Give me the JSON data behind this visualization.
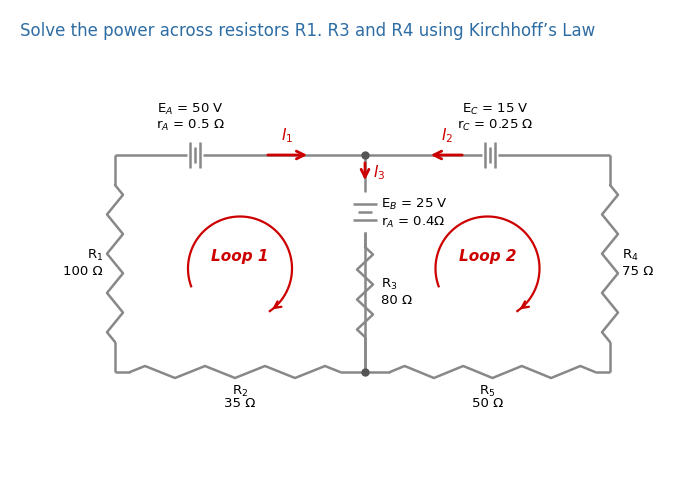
{
  "title": "Solve the power across resistors R1. R3 and R4 using Kirchhoff’s Law",
  "title_fontsize": 12,
  "title_color": "#2e6da4",
  "bg_color": "#ffffff",
  "circuit_color": "#888888",
  "red_color": "#cc0000",
  "circuit_lw": 1.8,
  "labels": {
    "EA": "E$_A$ = 50 V",
    "rA_top": "r$_A$ = 0.5 Ω",
    "EC": "E$_C$ = 15 V",
    "rC": "r$_C$ = 0.25 Ω",
    "EB": "E$_B$ = 25 V",
    "rA_mid": "r$_A$ = 0.4Ω",
    "R1": "R$_1$",
    "R1_val": "100 Ω",
    "R2": "R$_2$",
    "R2_val": "35 Ω",
    "R3": "R$_3$",
    "R3_val": "80 Ω",
    "R4": "R$_4$",
    "R4_val": "75 Ω",
    "R5": "R$_5$",
    "R5_val": "50 Ω",
    "I1": "$I_1$",
    "I2": "$I_2$",
    "I3": "$I_3$",
    "Loop1": "Loop 1",
    "Loop2": "Loop 2"
  }
}
